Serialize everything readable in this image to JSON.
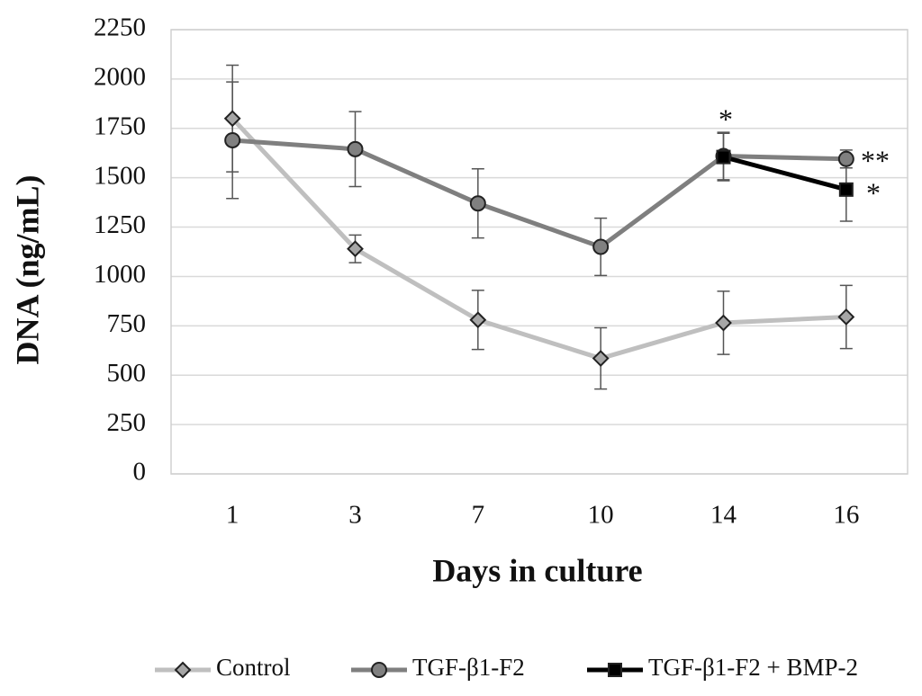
{
  "chart_data": {
    "type": "line",
    "categories": [
      "1",
      "3",
      "7",
      "10",
      "14",
      "16"
    ],
    "x_label": "Days in culture",
    "y_label": "DNA (ng/mL)",
    "ylim": [
      0,
      2250
    ],
    "yticks": [
      0,
      250,
      500,
      750,
      1000,
      1250,
      1500,
      1750,
      2000,
      2250
    ],
    "grid": true,
    "legend": "bottom",
    "series": [
      {
        "name": "Control",
        "color": "#bfbfbf",
        "marker": "diamond",
        "marker_color": "#a6a6a6",
        "values": [
          1800,
          1140,
          780,
          585,
          765,
          795
        ],
        "errors": [
          270,
          70,
          150,
          155,
          160,
          160
        ]
      },
      {
        "name": "TGF-β1-F2",
        "color": "#7f7f7f",
        "marker": "circle",
        "marker_color": "#808080",
        "values": [
          1690,
          1645,
          1370,
          1150,
          1610,
          1595
        ],
        "errors": [
          295,
          190,
          175,
          145,
          120,
          45
        ]
      },
      {
        "name": "TGF-β1-F2 + BMP-2",
        "color": "#000000",
        "marker": "square",
        "marker_color": "#000000",
        "values": [
          null,
          null,
          null,
          null,
          1605,
          1440
        ],
        "errors": [
          null,
          null,
          null,
          null,
          120,
          160
        ]
      }
    ],
    "annotations": [
      "*",
      "**",
      "*"
    ]
  }
}
